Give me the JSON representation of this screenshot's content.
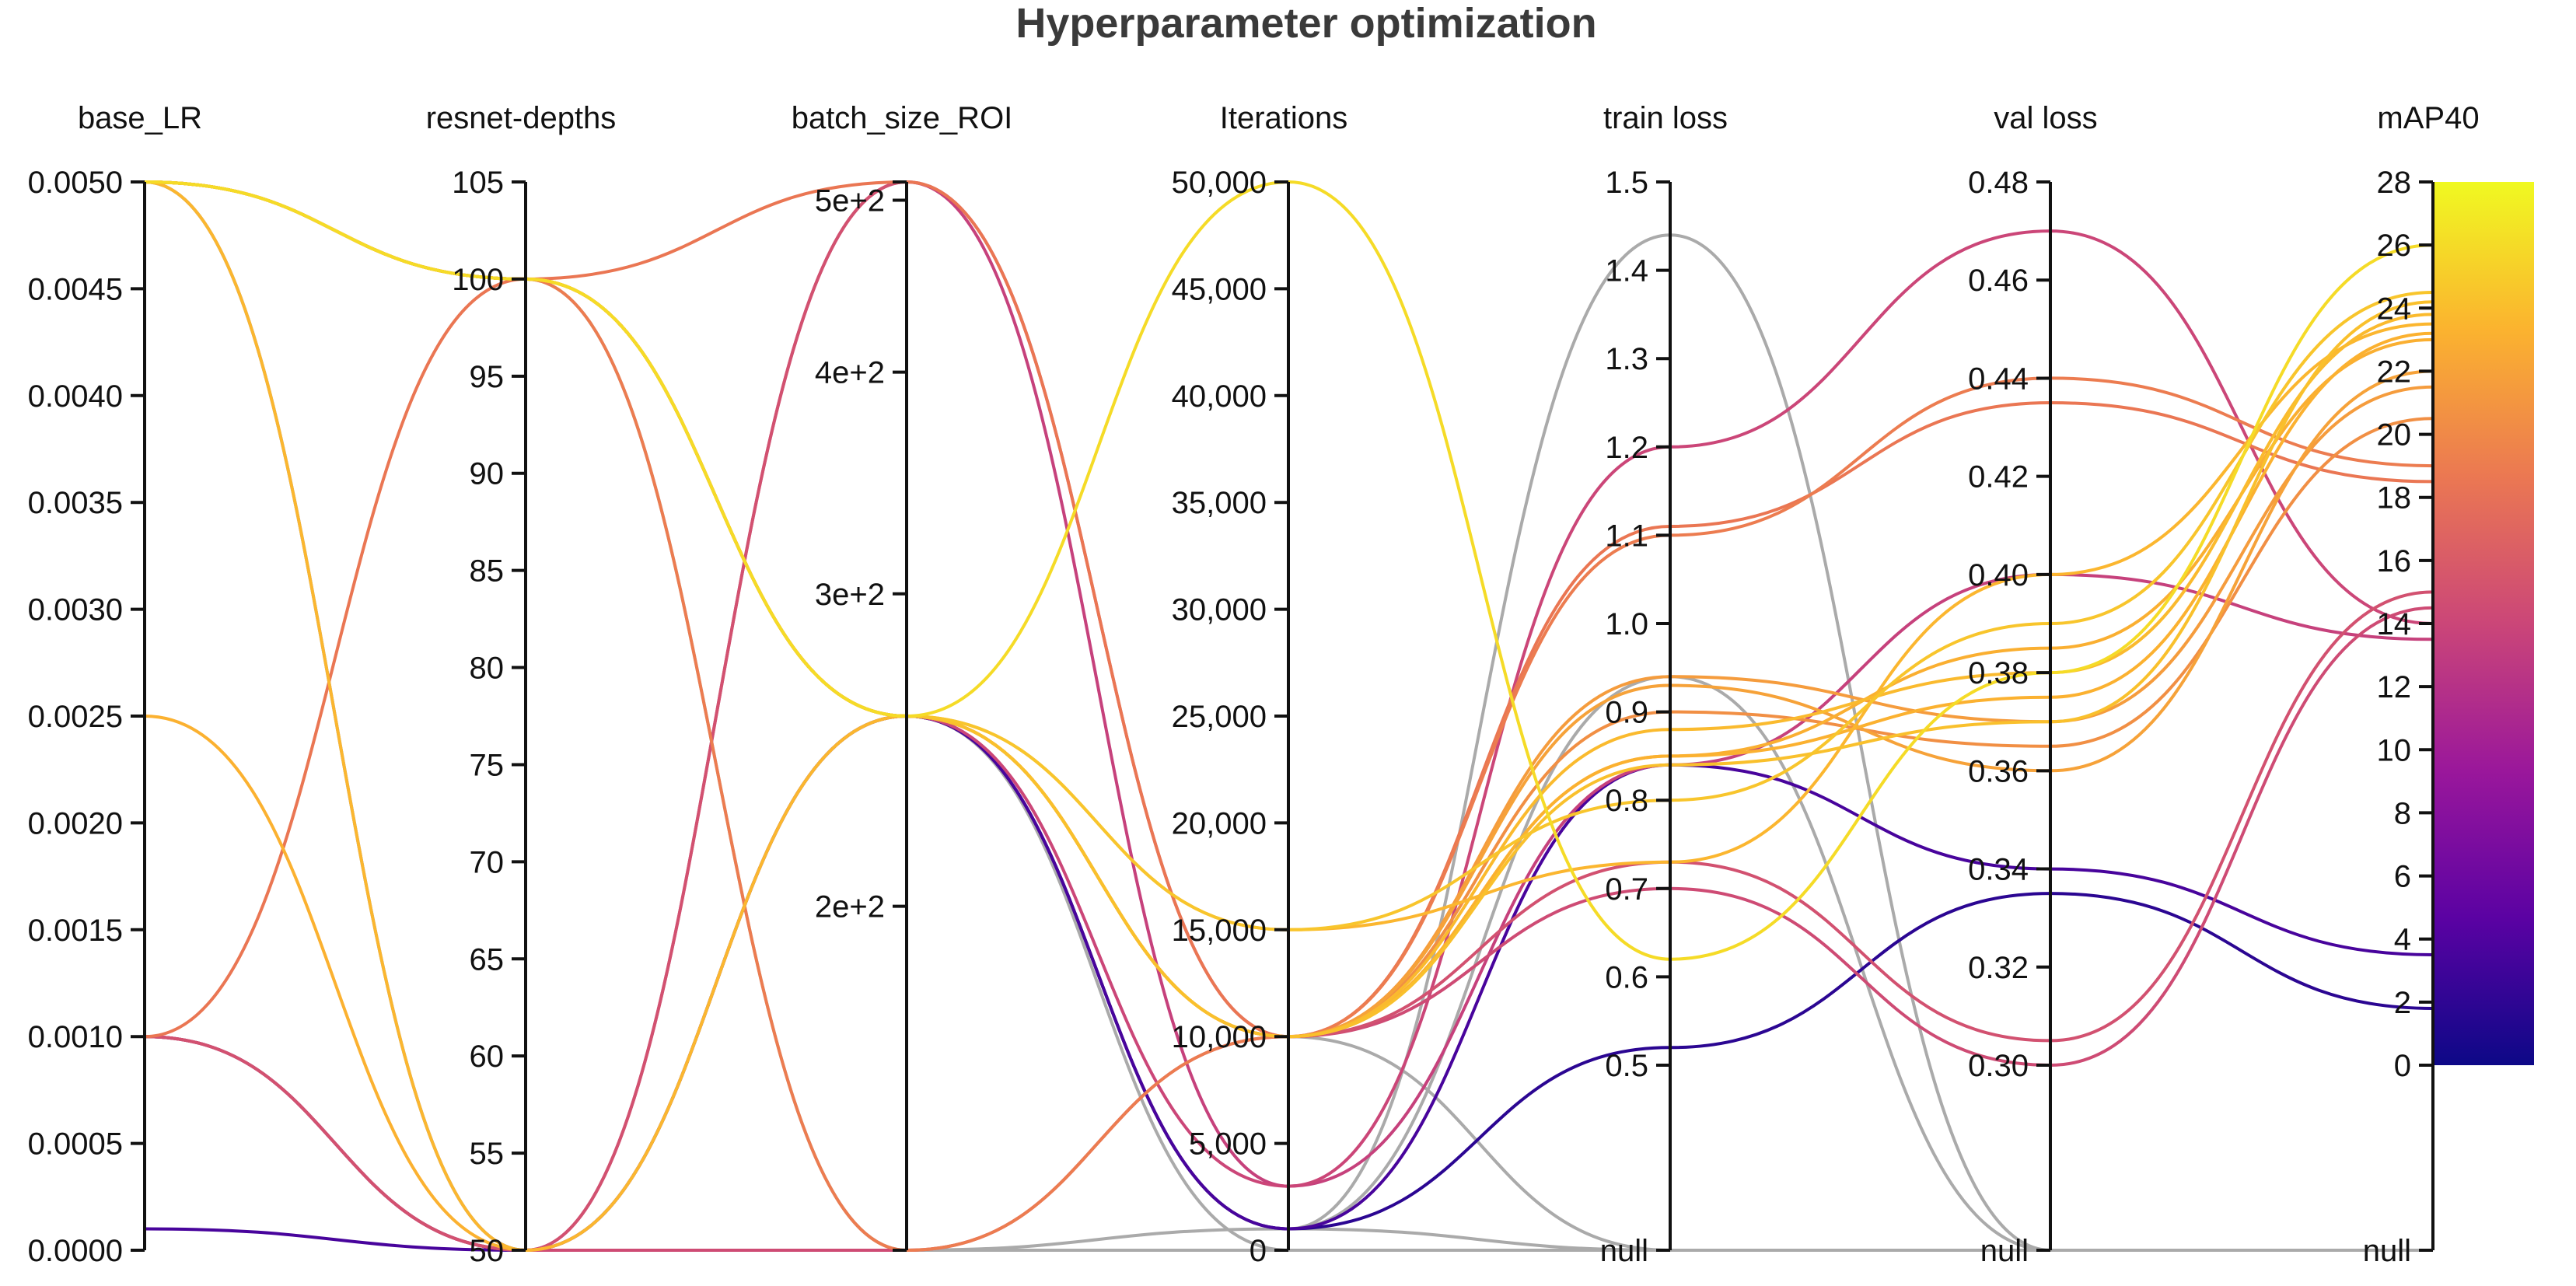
{
  "chart_data": {
    "type": "parallel_coordinates",
    "title": "Hyperparameter optimization",
    "colors": {
      "gray": "#aaaaaa",
      "colormap": "plasma",
      "colorbar_stops": [
        "#0d0887",
        "#5b02a3",
        "#9a179b",
        "#cb4678",
        "#eb7852",
        "#fbb32f",
        "#f0f921"
      ]
    },
    "axes": [
      {
        "key": "base_LR",
        "label": "base_LR",
        "range": [
          0,
          0.005
        ],
        "ticks": [
          {
            "v": 0,
            "t": "0.0000"
          },
          {
            "v": 0.0005,
            "t": "0.0005"
          },
          {
            "v": 0.001,
            "t": "0.0010"
          },
          {
            "v": 0.0015,
            "t": "0.0015"
          },
          {
            "v": 0.002,
            "t": "0.0020"
          },
          {
            "v": 0.0025,
            "t": "0.0025"
          },
          {
            "v": 0.003,
            "t": "0.0030"
          },
          {
            "v": 0.0035,
            "t": "0.0035"
          },
          {
            "v": 0.004,
            "t": "0.0040"
          },
          {
            "v": 0.0045,
            "t": "0.0045"
          },
          {
            "v": 0.005,
            "t": "0.0050"
          }
        ]
      },
      {
        "key": "resnet_depths",
        "label": "resnet-depths",
        "range": [
          50,
          105
        ],
        "ticks": [
          {
            "v": 50,
            "t": "50"
          },
          {
            "v": 55,
            "t": "55"
          },
          {
            "v": 60,
            "t": "60"
          },
          {
            "v": 65,
            "t": "65"
          },
          {
            "v": 70,
            "t": "70"
          },
          {
            "v": 75,
            "t": "75"
          },
          {
            "v": 80,
            "t": "80"
          },
          {
            "v": 85,
            "t": "85"
          },
          {
            "v": 90,
            "t": "90"
          },
          {
            "v": 95,
            "t": "95"
          },
          {
            "v": 100,
            "t": "100"
          },
          {
            "v": 105,
            "t": "105"
          }
        ]
      },
      {
        "key": "batch_size_ROI",
        "label": "batch_size_ROI",
        "range": [
          128,
          512
        ],
        "scale": "log",
        "ticks": [
          {
            "v": 200,
            "t": "2e+2"
          },
          {
            "v": 300,
            "t": "3e+2"
          },
          {
            "v": 400,
            "t": "4e+2"
          },
          {
            "v": 500,
            "t": "5e+2"
          }
        ]
      },
      {
        "key": "iterations",
        "label": "Iterations",
        "range": [
          0,
          50000
        ],
        "ticks": [
          {
            "v": 0,
            "t": "0"
          },
          {
            "v": 5000,
            "t": "5,000"
          },
          {
            "v": 10000,
            "t": "10,000"
          },
          {
            "v": 15000,
            "t": "15,000"
          },
          {
            "v": 20000,
            "t": "20,000"
          },
          {
            "v": 25000,
            "t": "25,000"
          },
          {
            "v": 30000,
            "t": "30,000"
          },
          {
            "v": 35000,
            "t": "35,000"
          },
          {
            "v": 40000,
            "t": "40,000"
          },
          {
            "v": 45000,
            "t": "45,000"
          },
          {
            "v": 50000,
            "t": "50,000"
          }
        ]
      },
      {
        "key": "train_loss",
        "label": "train loss",
        "range": [
          0.5,
          1.5
        ],
        "has_null": true,
        "ticks": [
          {
            "v": 0.5,
            "t": "0.5"
          },
          {
            "v": 0.6,
            "t": "0.6"
          },
          {
            "v": 0.7,
            "t": "0.7"
          },
          {
            "v": 0.8,
            "t": "0.8"
          },
          {
            "v": 0.9,
            "t": "0.9"
          },
          {
            "v": 1.0,
            "t": "1.0"
          },
          {
            "v": 1.1,
            "t": "1.1"
          },
          {
            "v": 1.2,
            "t": "1.2"
          },
          {
            "v": 1.3,
            "t": "1.3"
          },
          {
            "v": 1.4,
            "t": "1.4"
          },
          {
            "v": 1.5,
            "t": "1.5"
          }
        ]
      },
      {
        "key": "val_loss",
        "label": "val loss",
        "range": [
          0.3,
          0.48
        ],
        "has_null": true,
        "ticks": [
          {
            "v": 0.3,
            "t": "0.30"
          },
          {
            "v": 0.32,
            "t": "0.32"
          },
          {
            "v": 0.34,
            "t": "0.34"
          },
          {
            "v": 0.36,
            "t": "0.36"
          },
          {
            "v": 0.38,
            "t": "0.38"
          },
          {
            "v": 0.4,
            "t": "0.40"
          },
          {
            "v": 0.42,
            "t": "0.42"
          },
          {
            "v": 0.44,
            "t": "0.44"
          },
          {
            "v": 0.46,
            "t": "0.46"
          },
          {
            "v": 0.48,
            "t": "0.48"
          }
        ]
      },
      {
        "key": "mAP40",
        "label": "mAP40",
        "range": [
          0,
          28
        ],
        "has_null": true,
        "ticks": [
          {
            "v": 0,
            "t": "0"
          },
          {
            "v": 2,
            "t": "2"
          },
          {
            "v": 4,
            "t": "4"
          },
          {
            "v": 6,
            "t": "6"
          },
          {
            "v": 8,
            "t": "8"
          },
          {
            "v": 10,
            "t": "10"
          },
          {
            "v": 12,
            "t": "12"
          },
          {
            "v": 14,
            "t": "14"
          },
          {
            "v": 16,
            "t": "16"
          },
          {
            "v": 18,
            "t": "18"
          },
          {
            "v": 20,
            "t": "20"
          },
          {
            "v": 22,
            "t": "22"
          },
          {
            "v": 24,
            "t": "24"
          },
          {
            "v": 26,
            "t": "26"
          },
          {
            "v": 28,
            "t": "28"
          }
        ]
      }
    ],
    "null_label": "null",
    "runs": [
      [
        0.005,
        100,
        256,
        50000,
        0.62,
        0.38,
        26.0
      ],
      [
        0.005,
        50,
        256,
        15000,
        0.73,
        0.4,
        23.5
      ],
      [
        0.005,
        100,
        256,
        15000,
        0.8,
        0.39,
        24.5
      ],
      [
        0.005,
        100,
        256,
        10000,
        0.85,
        0.385,
        23.0
      ],
      [
        0.005,
        100,
        256,
        10000,
        0.88,
        0.38,
        23.8
      ],
      [
        0.005,
        100,
        256,
        10000,
        0.84,
        0.37,
        24.2
      ],
      [
        0.0025,
        50,
        256,
        10000,
        0.85,
        0.375,
        23.2
      ],
      [
        0.005,
        100,
        256,
        10000,
        0.94,
        0.37,
        21.5
      ],
      [
        0.005,
        100,
        256,
        10000,
        0.9,
        0.365,
        20.5
      ],
      [
        0.005,
        100,
        256,
        10000,
        0.93,
        0.36,
        22.0
      ],
      [
        0.005,
        100,
        128,
        10000,
        1.1,
        0.44,
        19.0
      ],
      [
        0.001,
        100,
        512,
        10000,
        1.11,
        0.435,
        18.5
      ],
      [
        0.005,
        100,
        256,
        3000,
        1.2,
        0.47,
        14.0
      ],
      [
        0.001,
        50,
        512,
        3000,
        0.84,
        0.4,
        13.5
      ],
      [
        0.001,
        50,
        512,
        10000,
        0.73,
        0.305,
        15.0
      ],
      [
        0.001,
        50,
        128,
        10000,
        0.7,
        0.3,
        14.5
      ],
      [
        0.0001,
        50,
        256,
        1000,
        0.84,
        0.34,
        3.5
      ],
      [
        0.001,
        50,
        256,
        1000,
        0.52,
        0.335,
        1.8
      ],
      [
        0.005,
        100,
        256,
        1000,
        1.44,
        null,
        null
      ],
      [
        0.005,
        100,
        128,
        1000,
        0.94,
        null,
        null
      ],
      [
        0.005,
        100,
        256,
        10000,
        null,
        null,
        null
      ],
      [
        0.005,
        50,
        256,
        1000,
        null,
        null,
        null
      ],
      [
        0.005,
        50,
        128,
        0,
        null,
        null,
        null
      ],
      [
        0.005,
        100,
        256,
        0,
        null,
        null,
        null
      ]
    ]
  }
}
